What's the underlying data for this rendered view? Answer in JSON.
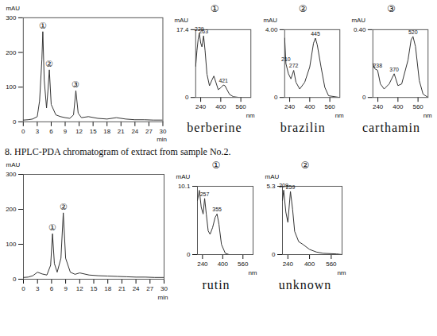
{
  "caption": "8. HPLC-PDA chromatogram of extract from sample No.2.",
  "chart_data": [
    {
      "type": "line",
      "x_label": "min",
      "y_label": "mAU",
      "color": "#333333",
      "x": [
        0,
        1,
        2,
        3,
        3.5,
        4,
        4.2,
        4.5,
        5,
        5.3,
        5.6,
        6,
        7,
        8,
        9,
        10,
        10.8,
        11.3,
        11.8,
        12.5,
        14,
        16,
        18,
        20,
        22,
        24,
        26,
        28,
        30
      ],
      "values": [
        5,
        6,
        8,
        15,
        60,
        180,
        260,
        120,
        40,
        90,
        150,
        50,
        20,
        15,
        12,
        10,
        20,
        90,
        25,
        12,
        15,
        10,
        8,
        12,
        8,
        6,
        6,
        5,
        5
      ],
      "xlim": [
        0,
        30
      ],
      "xticks": [
        0,
        3,
        6,
        9,
        12,
        15,
        18,
        21,
        24,
        27,
        30
      ],
      "ylim": [
        0,
        300
      ],
      "yticks": [
        0,
        100,
        200,
        300
      ],
      "annotations": [
        {
          "x": 4.2,
          "y": 260,
          "text": "①"
        },
        {
          "x": 5.6,
          "y": 150,
          "text": "②"
        },
        {
          "x": 11.3,
          "y": 90,
          "text": "③"
        }
      ]
    },
    {
      "type": "line",
      "title": "①",
      "caption": "berberine",
      "x_label": "nm",
      "y_label": "mAU",
      "color": "#333333",
      "x": [
        200,
        210,
        220,
        229,
        240,
        250,
        263,
        275,
        290,
        310,
        330,
        345,
        360,
        380,
        400,
        421,
        434,
        450,
        470,
        500,
        550,
        640
      ],
      "values": [
        8,
        12,
        15,
        16.5,
        14,
        13,
        15.8,
        12,
        6,
        3,
        4.5,
        5.5,
        4,
        2,
        2.5,
        3.2,
        3,
        2,
        0.8,
        0.2,
        0,
        0
      ],
      "xlim": [
        200,
        640
      ],
      "xticks": [
        240,
        400,
        560
      ],
      "ylim": [
        0,
        17.4
      ],
      "yticks": [
        0,
        17.4
      ],
      "annotations": [
        {
          "x": 229,
          "y": 16.5,
          "text": "229"
        },
        {
          "x": 263,
          "y": 15.8,
          "text": "263"
        },
        {
          "x": 421,
          "y": 3.2,
          "text": "421"
        }
      ]
    },
    {
      "type": "line",
      "title": "②",
      "caption": "brazilin",
      "x_label": "nm",
      "y_label": "mAU",
      "color": "#333333",
      "x": [
        200,
        210,
        230,
        250,
        272,
        290,
        320,
        360,
        400,
        430,
        445,
        460,
        490,
        520,
        550,
        640
      ],
      "values": [
        3.5,
        2.0,
        1.4,
        1.1,
        1.6,
        0.9,
        0.5,
        0.9,
        1.8,
        3.2,
        3.5,
        3.1,
        1.8,
        0.6,
        0.1,
        0
      ],
      "xlim": [
        200,
        640
      ],
      "xticks": [
        240,
        400,
        560
      ],
      "ylim": [
        0,
        4
      ],
      "yticks": [
        0,
        {
          "value": 4,
          "label": "4.00"
        }
      ],
      "annotations": [
        {
          "x": 210,
          "y": 2.0,
          "text": "210"
        },
        {
          "x": 272,
          "y": 1.6,
          "text": "272"
        },
        {
          "x": 445,
          "y": 3.5,
          "text": "445"
        }
      ]
    },
    {
      "type": "line",
      "title": "③",
      "caption": "carthamin",
      "x_label": "nm",
      "y_label": "mAU",
      "color": "#333333",
      "x": [
        200,
        215,
        238,
        260,
        290,
        330,
        370,
        400,
        430,
        480,
        505,
        520,
        540,
        570,
        600,
        640
      ],
      "values": [
        0.2,
        0.17,
        0.16,
        0.08,
        0.05,
        0.08,
        0.14,
        0.07,
        0.08,
        0.22,
        0.34,
        0.36,
        0.3,
        0.1,
        0.02,
        0
      ],
      "xlim": [
        200,
        640
      ],
      "xticks": [
        240,
        400,
        560
      ],
      "ylim": [
        0,
        0.4
      ],
      "yticks": [
        0,
        {
          "value": 0.4,
          "label": "0.40"
        }
      ],
      "annotations": [
        {
          "x": 238,
          "y": 0.16,
          "text": "238"
        },
        {
          "x": 370,
          "y": 0.14,
          "text": "370"
        },
        {
          "x": 520,
          "y": 0.36,
          "text": "520"
        }
      ]
    },
    {
      "type": "line",
      "x_label": "min",
      "y_label": "mAU",
      "color": "#333333",
      "x": [
        0,
        1,
        2,
        3,
        4,
        5,
        5.8,
        6.2,
        6.6,
        7.2,
        8,
        8.5,
        9,
        10,
        11,
        12,
        14,
        16,
        18,
        20,
        22,
        24,
        26,
        28,
        30
      ],
      "values": [
        5,
        6,
        10,
        20,
        15,
        12,
        40,
        130,
        45,
        20,
        60,
        190,
        60,
        20,
        14,
        18,
        12,
        10,
        9,
        8,
        7,
        6,
        6,
        5,
        5
      ],
      "xlim": [
        0,
        30
      ],
      "xticks": [
        0,
        3,
        6,
        9,
        12,
        15,
        18,
        21,
        24,
        27,
        30
      ],
      "ylim": [
        0,
        300
      ],
      "yticks": [
        0,
        100,
        200,
        300
      ],
      "annotations": [
        {
          "x": 6.2,
          "y": 130,
          "text": "①"
        },
        {
          "x": 8.5,
          "y": 190,
          "text": "②"
        }
      ]
    },
    {
      "type": "line",
      "title": "①",
      "caption": "rutin",
      "x_label": "nm",
      "y_label": "mAU",
      "color": "#333333",
      "x": [
        200,
        215,
        230,
        245,
        257,
        270,
        285,
        300,
        320,
        340,
        355,
        370,
        390,
        420,
        450,
        640
      ],
      "values": [
        8,
        9.5,
        7,
        6,
        8.3,
        6,
        3.5,
        3,
        4,
        5.5,
        6,
        4.5,
        1.5,
        0.2,
        0,
        0
      ],
      "xlim": [
        200,
        640
      ],
      "xticks": [
        240,
        400,
        560
      ],
      "ylim": [
        0,
        10.1
      ],
      "yticks": [
        0,
        10.1
      ],
      "annotations": [
        {
          "x": 257,
          "y": 8.3,
          "text": "257"
        },
        {
          "x": 355,
          "y": 6,
          "text": "355"
        }
      ]
    },
    {
      "type": "line",
      "title": "②",
      "caption": "unknown",
      "x_label": "nm",
      "y_label": "mAU",
      "color": "#333333",
      "x": [
        200,
        209,
        225,
        240,
        259,
        275,
        290,
        320,
        350,
        400,
        450,
        500,
        600,
        640
      ],
      "values": [
        4.2,
        5.0,
        3.3,
        2.5,
        4.9,
        3.5,
        1.8,
        1.0,
        0.8,
        0.4,
        0.2,
        0.1,
        0.05,
        0
      ],
      "xlim": [
        200,
        640
      ],
      "xticks": [
        240,
        400,
        560
      ],
      "ylim": [
        0,
        5.3
      ],
      "yticks": [
        0,
        5.3
      ],
      "annotations": [
        {
          "x": 209,
          "y": 5.0,
          "text": "209"
        },
        {
          "x": 259,
          "y": 4.9,
          "text": "259"
        }
      ]
    }
  ]
}
